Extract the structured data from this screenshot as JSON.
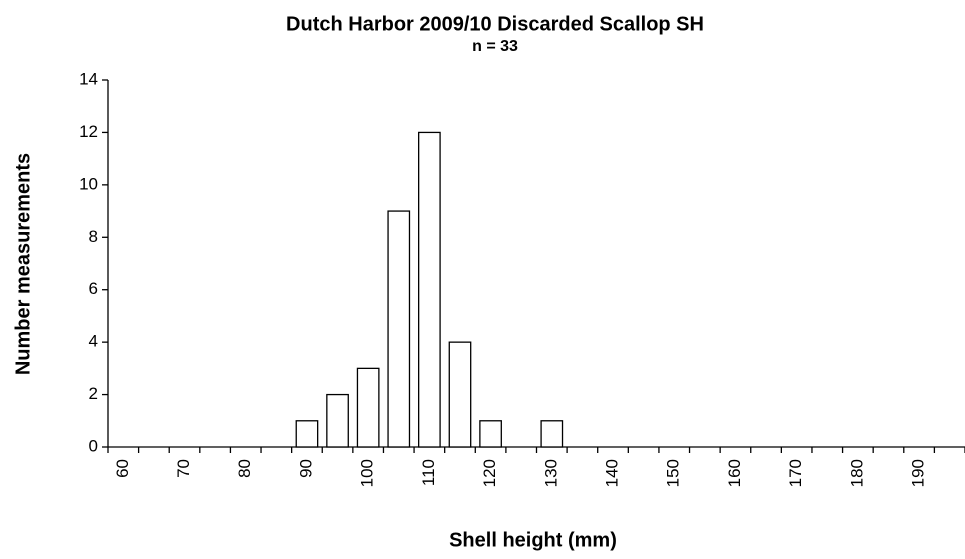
{
  "chart_data": {
    "type": "bar",
    "title": "Dutch Harbor 2009/10 Discarded Scallop SH",
    "subtitle": "n = 33",
    "x_label": "Shell height (mm)",
    "y_label": "Number measurements",
    "categories": [
      "60",
      null,
      "70",
      null,
      "80",
      null,
      "90",
      null,
      "100",
      null,
      "110",
      null,
      "120",
      null,
      "130",
      null,
      "140",
      null,
      "150",
      null,
      "160",
      null,
      "170",
      null,
      "180",
      null,
      "190",
      null
    ],
    "values": [
      0,
      0,
      0,
      0,
      0,
      0,
      1,
      2,
      3,
      9,
      12,
      4,
      1,
      0,
      1,
      0,
      0,
      0,
      0,
      0,
      0,
      0,
      0,
      0,
      0,
      0,
      0,
      0
    ],
    "color": "#ffffff",
    "ylim": [
      0,
      14
    ],
    "yticks": [
      0,
      2,
      4,
      6,
      8,
      10,
      12,
      14
    ],
    "grid": false
  }
}
